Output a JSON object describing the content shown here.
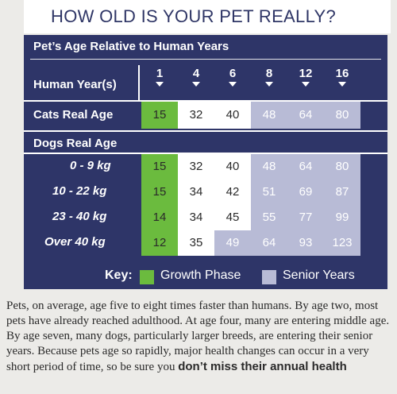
{
  "title": "HOW OLD IS YOUR PET REALLY?",
  "table": {
    "heading": "Pet’s Age Relative to Human Years",
    "human_label": "Human Year(s)",
    "human_years": [
      "1",
      "4",
      "6",
      "8",
      "12",
      "16"
    ],
    "cats_label": "Cats Real Age",
    "cats_values": [
      "15",
      "32",
      "40",
      "48",
      "64",
      "80"
    ],
    "dogs_label": "Dogs Real Age",
    "dog_rows": [
      {
        "label": "0 - 9 kg",
        "values": [
          "15",
          "32",
          "40",
          "48",
          "64",
          "80"
        ]
      },
      {
        "label": "10 - 22 kg",
        "values": [
          "15",
          "34",
          "42",
          "51",
          "69",
          "87"
        ]
      },
      {
        "label": "23 - 40 kg",
        "values": [
          "14",
          "34",
          "45",
          "55",
          "77",
          "99"
        ]
      },
      {
        "label": "Over 40 kg",
        "values": [
          "12",
          "35",
          "49",
          "64",
          "93",
          "123"
        ]
      }
    ]
  },
  "key": {
    "label": "Key:",
    "growth": "Growth Phase",
    "senior": "Senior Years",
    "growth_color": "#6bbb3e",
    "senior_color": "#b8bbd6"
  },
  "paragraph": {
    "text": "Pets, on average, age five to eight times faster than humans. By age two, most pets have already reached adulthood. At age four, many are entering middle age. By age seven, many dogs, particularly larger breeds, are entering their senior years. Because pets age so rapidly, major health changes can occur in a very short period of time, so be sure you",
    "bold": "don’t miss their annual health"
  }
}
